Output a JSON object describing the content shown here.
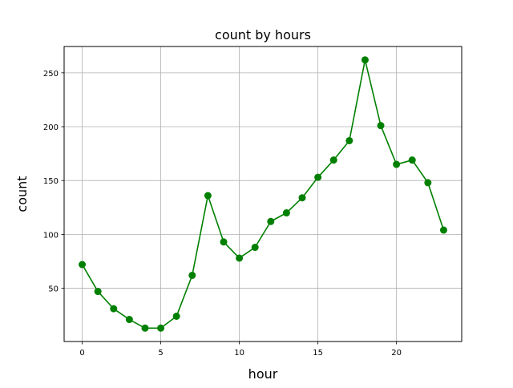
{
  "chart_data": {
    "type": "line",
    "title": "count by hours",
    "xlabel": "hour",
    "ylabel": "count",
    "x": [
      0,
      1,
      2,
      3,
      4,
      5,
      6,
      7,
      8,
      9,
      10,
      11,
      12,
      13,
      14,
      15,
      16,
      17,
      18,
      19,
      20,
      21,
      22,
      23
    ],
    "series": [
      {
        "name": "count",
        "color": "#008000",
        "values": [
          72,
          47,
          31,
          21,
          13,
          13,
          24,
          62,
          136,
          93,
          78,
          88,
          112,
          120,
          134,
          153,
          169,
          187,
          262,
          201,
          165,
          169,
          148,
          104
        ]
      }
    ],
    "xticks": [
      0,
      5,
      10,
      15,
      20
    ],
    "xtick_labels": [
      "0",
      "5",
      "10",
      "15",
      "20"
    ],
    "yticks": [
      50,
      100,
      150,
      200,
      250
    ],
    "ytick_labels": [
      "50",
      "100",
      "150",
      "200",
      "250"
    ],
    "xlim": [
      -1.15,
      24.15
    ],
    "ylim": [
      0.55,
      274.45
    ],
    "grid": true,
    "legend": "none"
  }
}
